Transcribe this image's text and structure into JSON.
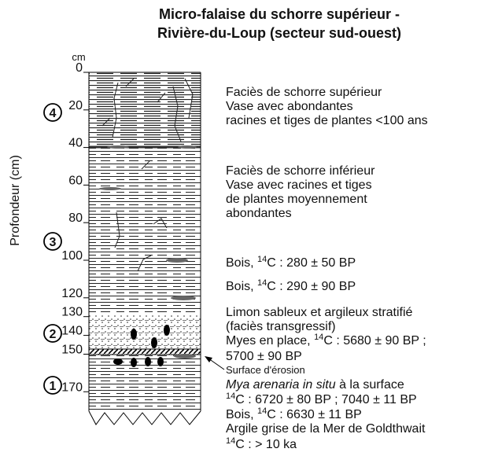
{
  "title": [
    "Micro-falaise du schorre supérieur -",
    "Rivière-du-Loup (secteur sud-ouest)"
  ],
  "depth_axis": {
    "unit": "cm",
    "label": "Profondeur (cm)",
    "ticks": [
      0,
      20,
      40,
      60,
      80,
      100,
      120,
      130,
      140,
      150,
      170
    ]
  },
  "units": [
    "4",
    "3",
    "2",
    "1"
  ],
  "descriptions": [
    [
      {
        "text": "Faciès de schorre supérieur"
      }
    ],
    [
      {
        "text": "Vase avec abondantes"
      }
    ],
    [
      {
        "text": "racines et tiges de plantes  <100 ans"
      }
    ],
    [
      {
        "text": "Faciès de schorre inférieur"
      }
    ],
    [
      {
        "text": "Vase avec racines et tiges"
      }
    ],
    [
      {
        "text": "de plantes moyennement"
      }
    ],
    [
      {
        "text": "abondantes"
      }
    ],
    [
      {
        "text": "Bois, "
      },
      {
        "text": "14",
        "style": "sup"
      },
      {
        "text": "C : 280 ± 50 BP"
      }
    ],
    [
      {
        "text": "Bois, "
      },
      {
        "text": "14",
        "style": "sup"
      },
      {
        "text": "C : 290 ± 90 BP"
      }
    ],
    [
      {
        "text": "Limon sableux et argileux stratifié"
      }
    ],
    [
      {
        "text": "(faciès transgressif)"
      }
    ],
    [
      {
        "text": "Myes en place, "
      },
      {
        "text": "14",
        "style": "sup"
      },
      {
        "text": "C : 5680 ± 90 BP ;"
      }
    ],
    [
      {
        "text": "5700 ± 90 BP"
      }
    ],
    [
      {
        "text": "Surface d'érosion",
        "style": "small"
      }
    ],
    [
      {
        "text": "Mya arenaria in situ",
        "style": "italic"
      },
      {
        "text": " à la surface"
      }
    ],
    [
      {
        "text": "14",
        "style": "sup"
      },
      {
        "text": "C : 6720 ± 80 BP ; 7040 ± 11 BP"
      }
    ],
    [
      {
        "text": "Bois, "
      },
      {
        "text": "14",
        "style": "sup"
      },
      {
        "text": "C : 6630 ± 11 BP"
      }
    ],
    [
      {
        "text": "Argile grise de la Mer de Goldthwait"
      }
    ],
    [
      {
        "text": "14",
        "style": "sup"
      },
      {
        "text": "C : > 10 ka"
      }
    ]
  ]
}
